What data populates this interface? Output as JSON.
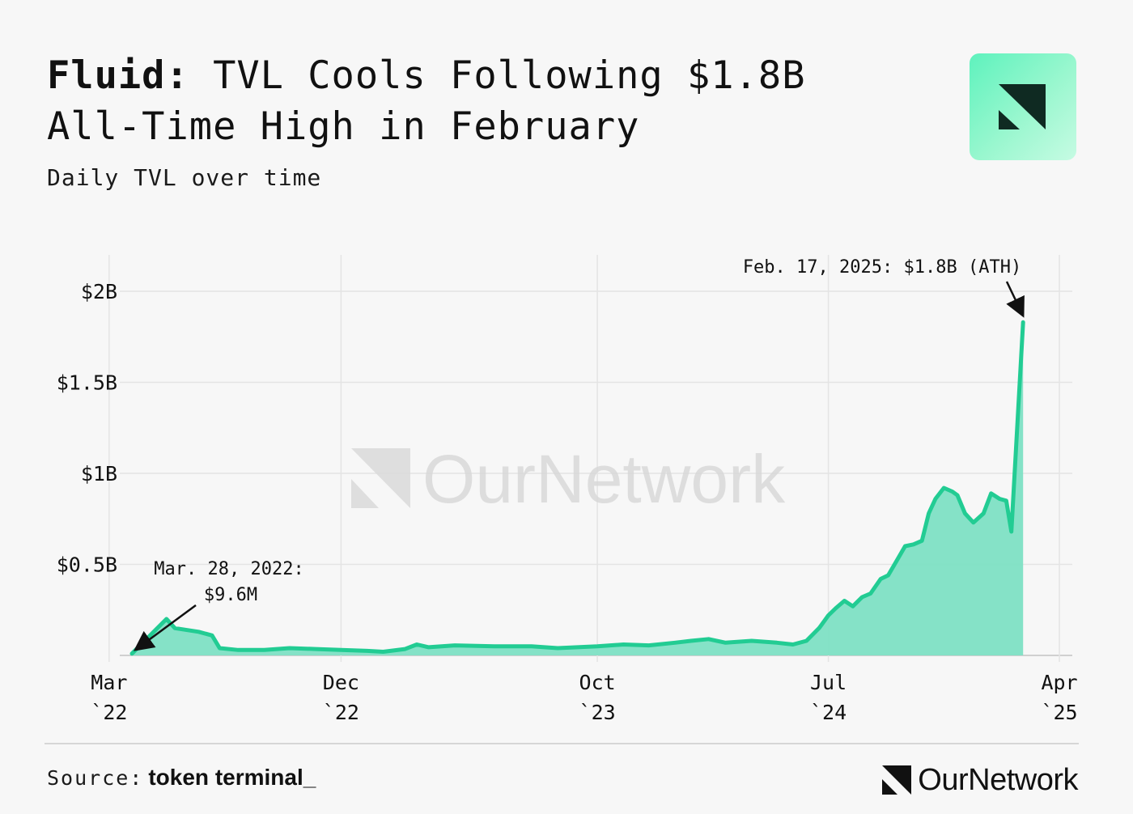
{
  "header": {
    "title_bold": "Fluid:",
    "title_rest": " TVL Cools Following $1.8B All-Time High in February",
    "subtitle": "Daily TVL over time"
  },
  "watermark": "OurNetwork",
  "footer": {
    "source_label": "Source:",
    "source_brand": "token terminal_",
    "logo_text": "OurNetwork"
  },
  "colors": {
    "line": "#22cc93",
    "fill": "#7ee0c4",
    "grid": "#e4e4e4",
    "annotation": "#111111"
  },
  "chart_data": {
    "type": "area",
    "title": "Fluid: TVL Cools Following $1.8B All-Time High in February",
    "subtitle": "Daily TVL over time",
    "xlabel": "",
    "ylabel": "",
    "x_range": [
      "2022-03-28",
      "2025-03-31"
    ],
    "ylim": [
      0,
      2.2
    ],
    "y_ticks": [
      {
        "value": 0.5,
        "label": "$0.5B"
      },
      {
        "value": 1.0,
        "label": "$1B"
      },
      {
        "value": 1.5,
        "label": "$1.5B"
      },
      {
        "value": 2.0,
        "label": "$2B"
      }
    ],
    "x_ticks": [
      {
        "date": "2022-03-01",
        "label1": "Mar",
        "label2": "`22"
      },
      {
        "date": "2022-12-01",
        "label1": "Dec",
        "label2": "`22"
      },
      {
        "date": "2023-10-01",
        "label1": "Oct",
        "label2": "`23"
      },
      {
        "date": "2024-07-01",
        "label1": "Jul",
        "label2": "`24"
      },
      {
        "date": "2025-04-01",
        "label1": "Apr",
        "label2": "`25"
      }
    ],
    "grid": true,
    "legend": "none",
    "series": [
      {
        "points": [
          [
            "2022-03-28",
            0.0096
          ],
          [
            "2022-04-10",
            0.07
          ],
          [
            "2022-04-25",
            0.14
          ],
          [
            "2022-05-08",
            0.2
          ],
          [
            "2022-05-18",
            0.15
          ],
          [
            "2022-06-15",
            0.13
          ],
          [
            "2022-07-01",
            0.11
          ],
          [
            "2022-07-10",
            0.04
          ],
          [
            "2022-08-01",
            0.03
          ],
          [
            "2022-09-01",
            0.03
          ],
          [
            "2022-10-01",
            0.04
          ],
          [
            "2022-11-01",
            0.035
          ],
          [
            "2022-12-01",
            0.03
          ],
          [
            "2023-01-01",
            0.025
          ],
          [
            "2023-01-20",
            0.02
          ],
          [
            "2023-02-15",
            0.035
          ],
          [
            "2023-03-01",
            0.06
          ],
          [
            "2023-03-15",
            0.045
          ],
          [
            "2023-04-15",
            0.055
          ],
          [
            "2023-06-01",
            0.05
          ],
          [
            "2023-07-15",
            0.05
          ],
          [
            "2023-08-15",
            0.04
          ],
          [
            "2023-10-01",
            0.05
          ],
          [
            "2023-11-01",
            0.06
          ],
          [
            "2023-12-01",
            0.055
          ],
          [
            "2024-01-01",
            0.07
          ],
          [
            "2024-01-20",
            0.08
          ],
          [
            "2024-02-10",
            0.09
          ],
          [
            "2024-03-01",
            0.07
          ],
          [
            "2024-04-01",
            0.08
          ],
          [
            "2024-05-01",
            0.07
          ],
          [
            "2024-05-20",
            0.06
          ],
          [
            "2024-06-05",
            0.08
          ],
          [
            "2024-06-20",
            0.15
          ],
          [
            "2024-07-01",
            0.22
          ],
          [
            "2024-07-10",
            0.26
          ],
          [
            "2024-07-20",
            0.3
          ],
          [
            "2024-07-30",
            0.27
          ],
          [
            "2024-08-10",
            0.32
          ],
          [
            "2024-08-20",
            0.34
          ],
          [
            "2024-09-01",
            0.42
          ],
          [
            "2024-09-10",
            0.44
          ],
          [
            "2024-09-20",
            0.52
          ],
          [
            "2024-09-30",
            0.6
          ],
          [
            "2024-10-10",
            0.61
          ],
          [
            "2024-10-20",
            0.63
          ],
          [
            "2024-10-28",
            0.78
          ],
          [
            "2024-11-05",
            0.86
          ],
          [
            "2024-11-15",
            0.92
          ],
          [
            "2024-11-25",
            0.9
          ],
          [
            "2024-12-01",
            0.88
          ],
          [
            "2024-12-10",
            0.78
          ],
          [
            "2024-12-20",
            0.73
          ],
          [
            "2025-01-01",
            0.78
          ],
          [
            "2025-01-10",
            0.89
          ],
          [
            "2025-01-20",
            0.86
          ],
          [
            "2025-01-28",
            0.85
          ],
          [
            "2025-02-03",
            0.68
          ],
          [
            "2025-02-17",
            1.83
          ]
        ]
      }
    ],
    "annotations": [
      {
        "text_line1": "Mar. 28, 2022:",
        "text_line2": "$9.6M",
        "date": "2022-03-28",
        "value": 0.0096
      },
      {
        "text": "Feb. 17, 2025: $1.8B (ATH)",
        "date": "2025-02-17",
        "value": 1.83
      }
    ]
  }
}
